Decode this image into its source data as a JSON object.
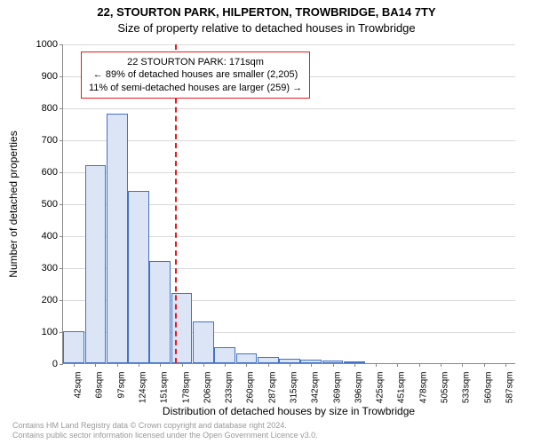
{
  "title_line1": "22, STOURTON PARK, HILPERTON, TROWBRIDGE, BA14 7TY",
  "title_line2": "Size of property relative to detached houses in Trowbridge",
  "y_axis_label": "Number of detached properties",
  "x_axis_label": "Distribution of detached houses by size in Trowbridge",
  "chart": {
    "type": "histogram",
    "ylim": [
      0,
      1000
    ],
    "ytick_step": 100,
    "xticks": [
      "42sqm",
      "69sqm",
      "97sqm",
      "124sqm",
      "151sqm",
      "178sqm",
      "206sqm",
      "233sqm",
      "260sqm",
      "287sqm",
      "315sqm",
      "342sqm",
      "369sqm",
      "396sqm",
      "425sqm",
      "451sqm",
      "478sqm",
      "505sqm",
      "533sqm",
      "560sqm",
      "587sqm"
    ],
    "values": [
      100,
      620,
      780,
      540,
      320,
      220,
      130,
      50,
      30,
      20,
      15,
      10,
      8,
      5,
      0,
      0,
      0,
      0,
      0,
      0,
      0
    ],
    "bar_fill": "#dbe5f6",
    "bar_stroke": "#4472c4",
    "background_color": "#ffffff",
    "grid_color": "#d9d9d9",
    "axis_color": "#888888",
    "label_fontsize": 12,
    "tick_fontsize": 11,
    "xtick_fontsize": 10,
    "reference_line": {
      "x_index": 4.7,
      "color": "#e7191c",
      "width": 2,
      "dash": "4,3"
    },
    "annotation": {
      "lines": [
        "22 STOURTON PARK: 171sqm",
        "← 89% of detached houses are smaller (2,205)",
        "11% of semi-detached houses are larger (259) →"
      ],
      "border_color": "#e7191c"
    }
  },
  "footer_line1": "Contains HM Land Registry data © Crown copyright and database right 2024.",
  "footer_line2": "Contains public sector information licensed under the Open Government Licence v3.0."
}
